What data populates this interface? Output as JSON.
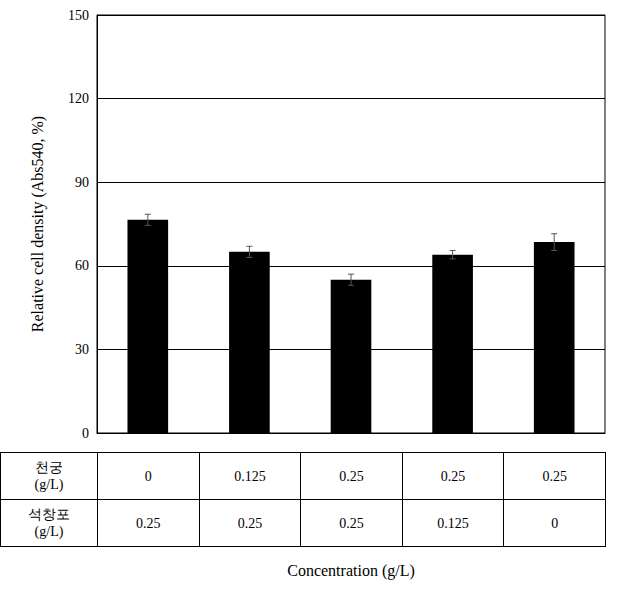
{
  "chart_data": {
    "type": "bar",
    "categories": [
      null,
      null,
      null,
      null,
      null
    ],
    "values": [
      76.5,
      65,
      55,
      64,
      68.5
    ],
    "errors": [
      2,
      2,
      2,
      1.5,
      3
    ],
    "color": "#000000",
    "y_label": "Relative cell density (Abs540, %)",
    "x_label": "Concentration (g/L)",
    "ylim": [
      0,
      150
    ],
    "yticks": [
      0,
      30,
      60,
      90,
      120,
      150
    ],
    "grid": true,
    "tick_labels": "y",
    "table": {
      "rows": [
        {
          "label": "천궁\n(g/L)",
          "values": [
            0,
            0.125,
            0.25,
            0.25,
            0.25
          ]
        },
        {
          "label": "석창포\n(g/L)",
          "values": [
            0.25,
            0.25,
            0.25,
            0.125,
            0
          ]
        }
      ]
    }
  }
}
